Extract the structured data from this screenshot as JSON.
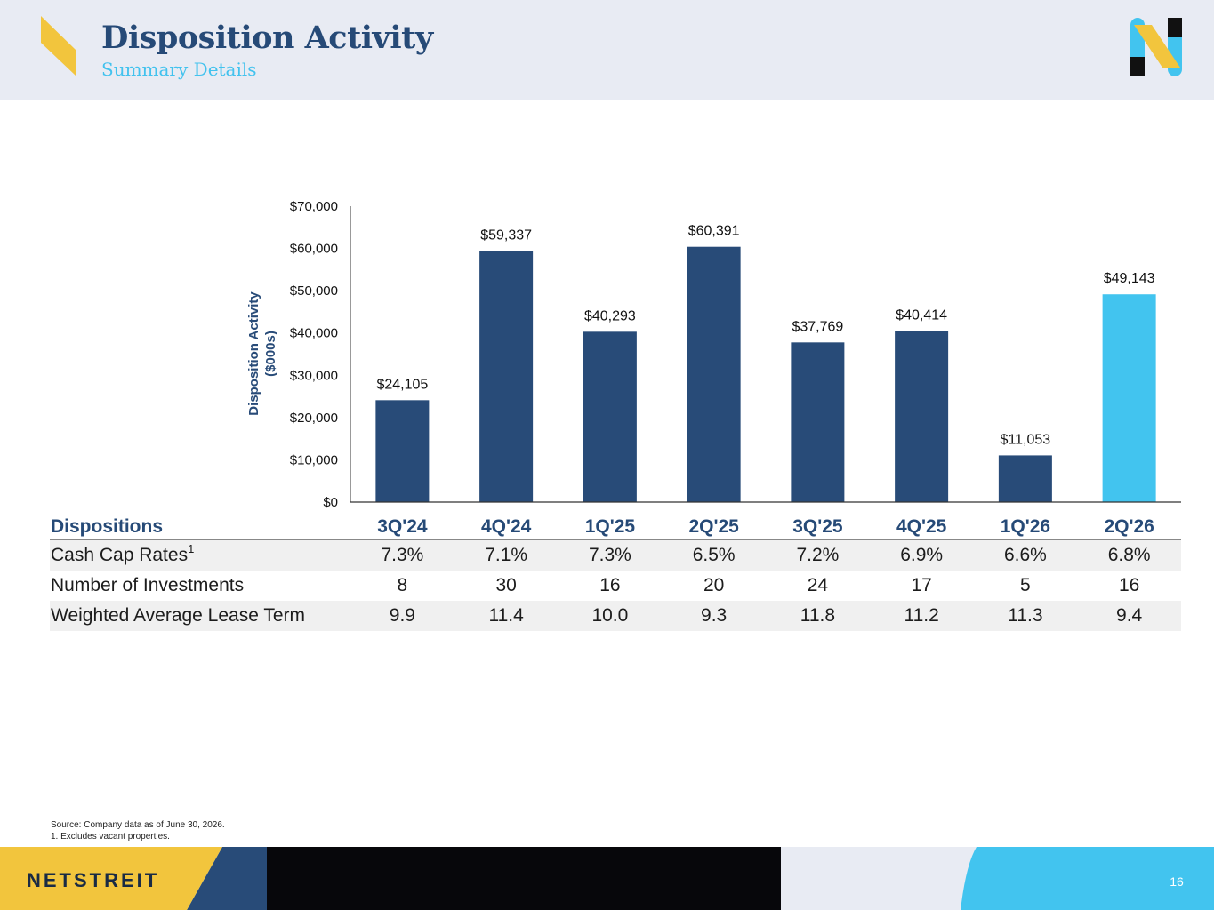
{
  "header": {
    "title": "Disposition Activity",
    "subtitle": "Summary Details"
  },
  "colors": {
    "navy": "#284b78",
    "cyan": "#42c4ef",
    "gold": "#f2c53d",
    "header_bg": "#e8ebf3"
  },
  "chart_data": {
    "type": "bar",
    "categories": [
      "3Q'24",
      "4Q'24",
      "1Q'25",
      "2Q'25",
      "3Q'25",
      "4Q'25",
      "1Q'26",
      "2Q'26"
    ],
    "values": [
      24105,
      59337,
      40293,
      60391,
      37769,
      40414,
      11053,
      49143
    ],
    "value_labels": [
      "$24,105",
      "$59,337",
      "$40,293",
      "$60,391",
      "$37,769",
      "$40,414",
      "$11,053",
      "$49,143"
    ],
    "ylabel": "Disposition Activity ($000s)",
    "ylabel_lines": [
      "Disposition Activity",
      "($000s)"
    ],
    "ylim": [
      0,
      70000
    ],
    "yticks": [
      0,
      10000,
      20000,
      30000,
      40000,
      50000,
      60000,
      70000
    ],
    "ytick_labels": [
      "$0",
      "$10,000",
      "$20,000",
      "$30,000",
      "$40,000",
      "$50,000",
      "$60,000",
      "$70,000"
    ],
    "highlight_last_bar": true,
    "grid": false
  },
  "table": {
    "header_label": "Dispositions",
    "columns": [
      "3Q'24",
      "4Q'24",
      "1Q'25",
      "2Q'25",
      "3Q'25",
      "4Q'25",
      "1Q'26",
      "2Q'26"
    ],
    "rows": [
      {
        "label": "Cash Cap Rates",
        "sup": "1",
        "values": [
          "7.3%",
          "7.1%",
          "7.3%",
          "6.5%",
          "7.2%",
          "6.9%",
          "6.6%",
          "6.8%"
        ]
      },
      {
        "label": "Number of Investments",
        "sup": "",
        "values": [
          "8",
          "30",
          "16",
          "20",
          "24",
          "17",
          "5",
          "16"
        ]
      },
      {
        "label": "Weighted Average Lease Term",
        "sup": "",
        "values": [
          "9.9",
          "11.4",
          "10.0",
          "9.3",
          "11.8",
          "11.2",
          "11.3",
          "9.4"
        ]
      }
    ]
  },
  "footnotes": {
    "source": "Source: Company data as of June 30, 2026.",
    "note1": "1.  Excludes vacant properties."
  },
  "footer": {
    "brand": "NETSTREIT",
    "page_number": "16"
  }
}
